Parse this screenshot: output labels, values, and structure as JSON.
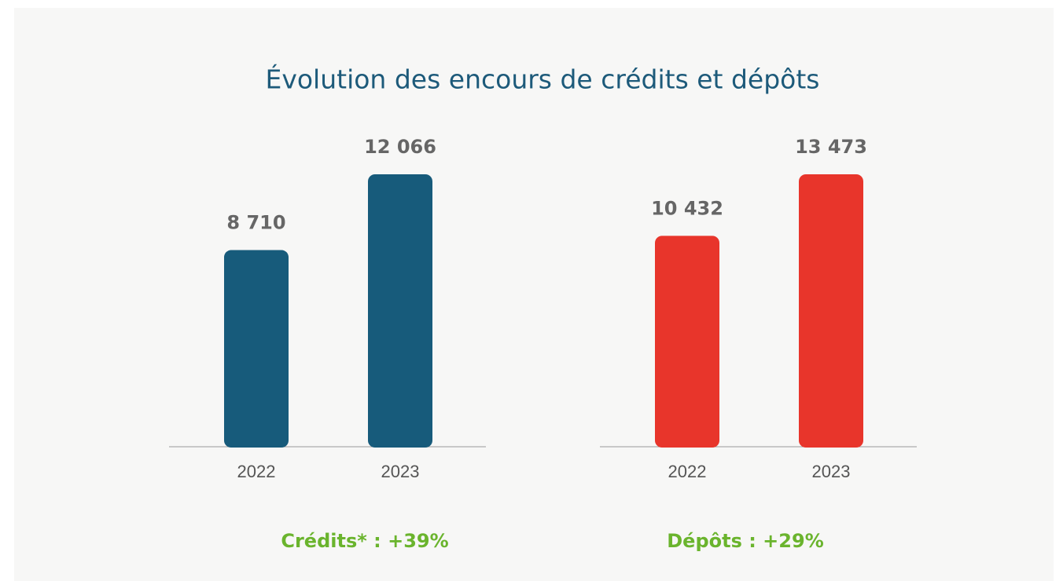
{
  "title": "Évolution des encours de crédits et dépôts",
  "chart_data": [
    {
      "type": "bar",
      "categories": [
        "2022",
        "2023"
      ],
      "values": [
        8710,
        12066
      ],
      "value_labels": [
        "8 710",
        "12 066"
      ],
      "color": "#175b7b",
      "annotation": "Crédits* : +39%"
    },
    {
      "type": "bar",
      "categories": [
        "2022",
        "2023"
      ],
      "values": [
        10432,
        13473
      ],
      "value_labels": [
        "10 432",
        "13 473"
      ],
      "color": "#e8352b",
      "annotation": "Dépôts : +29%"
    }
  ]
}
